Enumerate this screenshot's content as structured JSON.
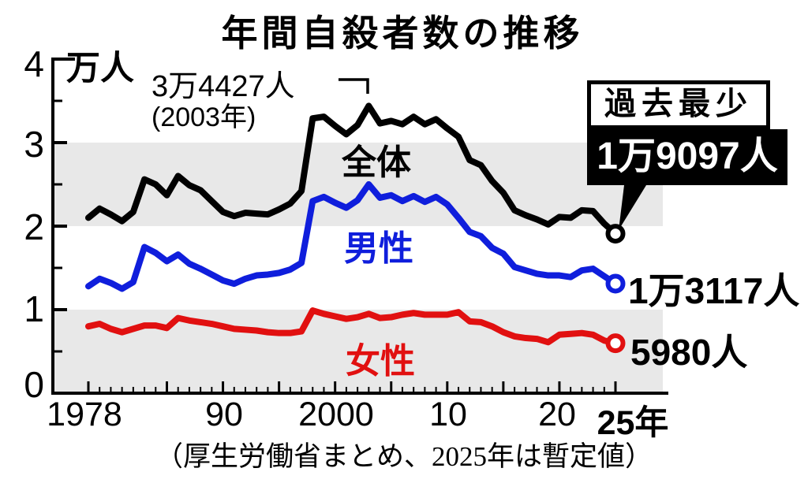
{
  "title": "年間自殺者数の推移",
  "y_axis": {
    "unit": "万人",
    "labels": [
      "4",
      "3",
      "2",
      "1",
      "0"
    ]
  },
  "x_axis": {
    "labels": [
      {
        "text": "1978"
      },
      {
        "text": "90"
      },
      {
        "text": "2000"
      },
      {
        "text": "10"
      },
      {
        "text": "20"
      },
      {
        "text": "25年"
      }
    ]
  },
  "annotations": {
    "peak_value": "3万4427人",
    "peak_year": "(2003年)",
    "record_box_title": "過去最少",
    "record_value": "1万9097人",
    "male_end_value": "1万3117人",
    "female_end_value": "5980人"
  },
  "footer": "（厚生労働省まとめ、2025年は暫定値）",
  "colors": {
    "total": "#000000",
    "male": "#0f1edc",
    "female": "#e11010",
    "band": "#e8e8e8",
    "record_box_bg": "#000000",
    "record_box_text": "#ffffff"
  },
  "chart_data": {
    "type": "line",
    "title": "年間自殺者数の推移",
    "ylabel": "万人",
    "xlim": [
      1978,
      2025
    ],
    "ylim": [
      0,
      4
    ],
    "y_major_tick_step": 1,
    "y_minor_tick_step": 0.5,
    "x_minor_tick_step": 1,
    "x_major_ticks": [
      1978,
      1985,
      1990,
      1995,
      2000,
      2005,
      2010,
      2015,
      2020,
      2025
    ],
    "shaded_bands": [
      [
        0,
        1
      ],
      [
        2,
        3
      ]
    ],
    "peak": {
      "year": 2003,
      "value": 3.4427,
      "label": "3万4427人"
    },
    "end_values": {
      "total": 1.9097,
      "male": 1.3117,
      "female": 0.598
    },
    "series": [
      {
        "name": "全体",
        "color_key": "total",
        "values": [
          2.1,
          2.21,
          2.14,
          2.06,
          2.17,
          2.56,
          2.5,
          2.37,
          2.6,
          2.49,
          2.43,
          2.3,
          2.17,
          2.12,
          2.16,
          2.15,
          2.14,
          2.2,
          2.27,
          2.42,
          3.29,
          3.31,
          3.2,
          3.1,
          3.21,
          3.44,
          3.23,
          3.26,
          3.22,
          3.31,
          3.22,
          3.28,
          3.17,
          3.07,
          2.79,
          2.73,
          2.54,
          2.4,
          2.19,
          2.13,
          2.08,
          2.02,
          2.11,
          2.1,
          2.19,
          2.18,
          2.03,
          1.9097
        ]
      },
      {
        "name": "男性",
        "color_key": "male",
        "values": [
          1.28,
          1.37,
          1.32,
          1.25,
          1.33,
          1.75,
          1.68,
          1.58,
          1.66,
          1.55,
          1.49,
          1.42,
          1.35,
          1.31,
          1.37,
          1.41,
          1.42,
          1.44,
          1.48,
          1.56,
          2.3,
          2.35,
          2.28,
          2.22,
          2.31,
          2.5,
          2.34,
          2.37,
          2.3,
          2.36,
          2.29,
          2.35,
          2.26,
          2.1,
          1.93,
          1.88,
          1.74,
          1.67,
          1.51,
          1.47,
          1.43,
          1.41,
          1.41,
          1.39,
          1.47,
          1.49,
          1.4,
          1.3117
        ]
      },
      {
        "name": "女性",
        "color_key": "female",
        "values": [
          0.8,
          0.83,
          0.77,
          0.73,
          0.77,
          0.81,
          0.81,
          0.78,
          0.9,
          0.87,
          0.85,
          0.83,
          0.8,
          0.77,
          0.76,
          0.75,
          0.73,
          0.72,
          0.72,
          0.74,
          0.99,
          0.95,
          0.92,
          0.89,
          0.91,
          0.95,
          0.9,
          0.91,
          0.94,
          0.96,
          0.94,
          0.94,
          0.94,
          0.97,
          0.86,
          0.85,
          0.8,
          0.73,
          0.68,
          0.66,
          0.65,
          0.61,
          0.7,
          0.71,
          0.72,
          0.7,
          0.63,
          0.598
        ]
      }
    ]
  }
}
